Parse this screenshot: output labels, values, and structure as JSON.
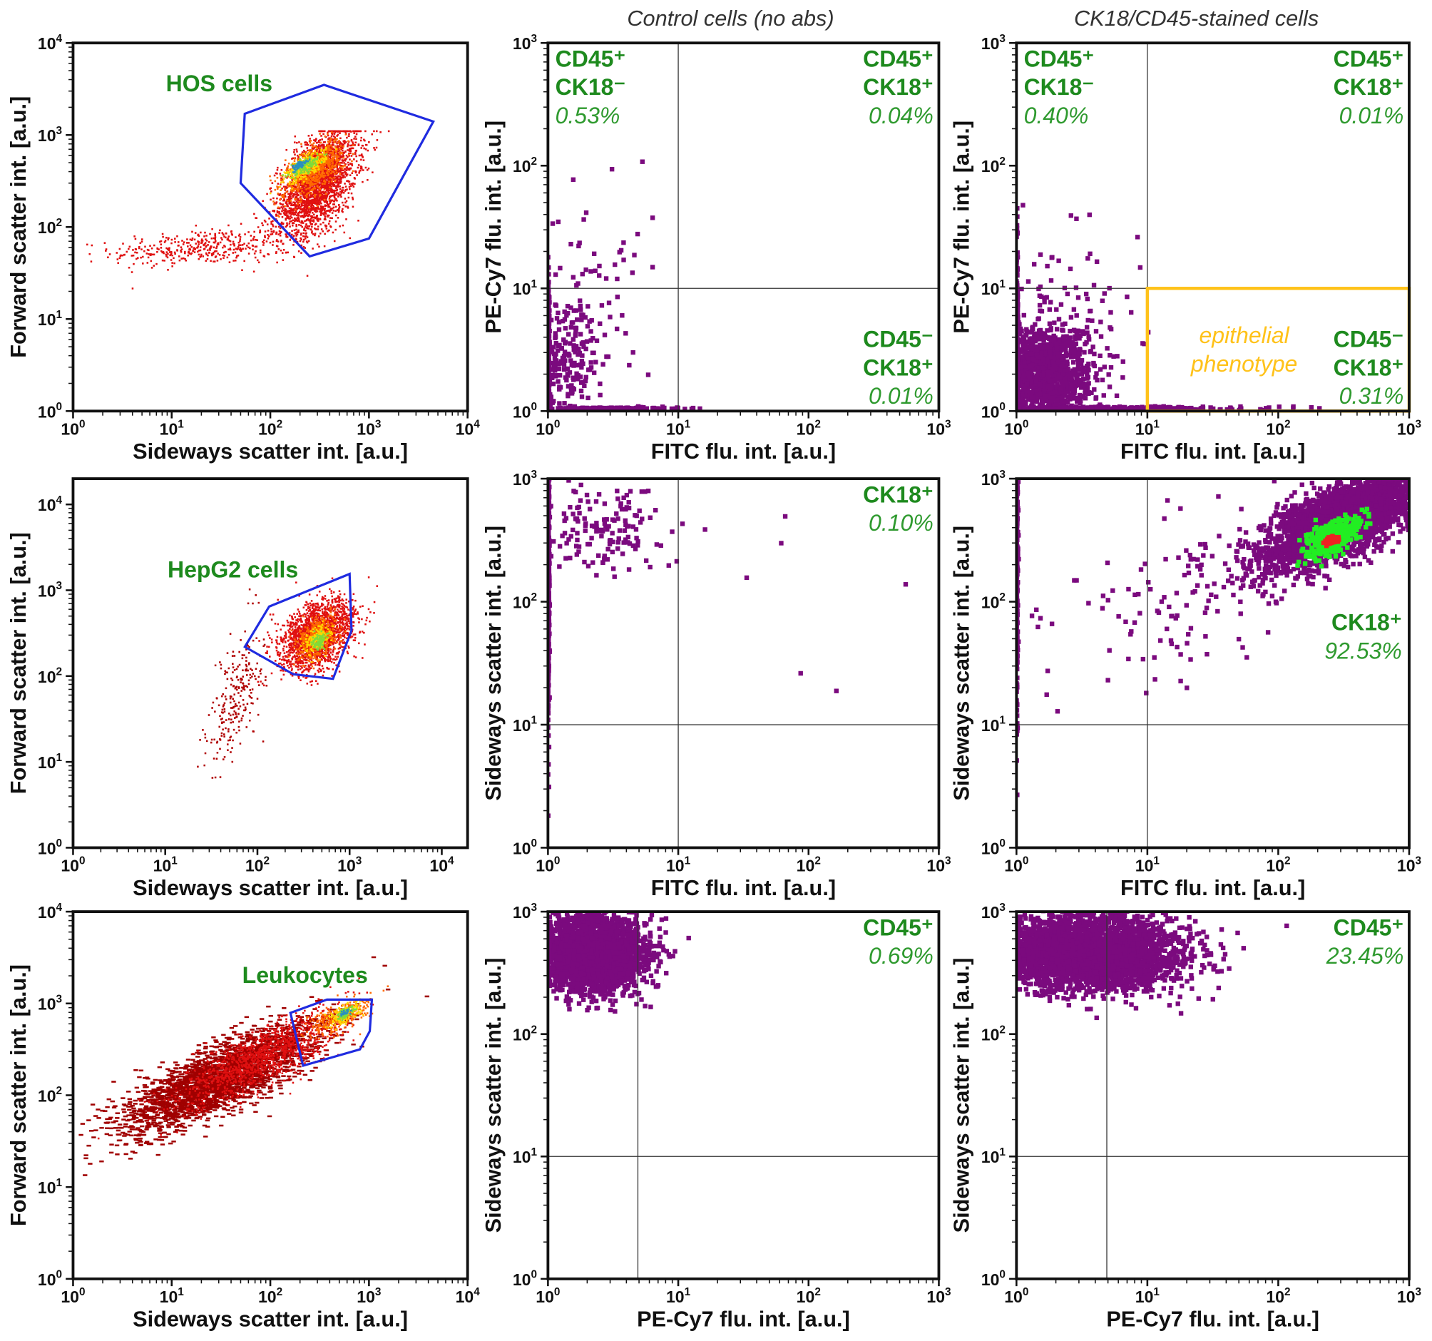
{
  "column_titles": [
    "",
    "Control cells (no abs)",
    "CK18/CD45-stained cells"
  ],
  "colors": {
    "purple": "#7b0a7e",
    "gate_blue": "#1f2be0",
    "gate_orange": "#ffc21a",
    "label_green": "#1e8a1e",
    "quadrant_line": "#333333"
  },
  "chart_data": [
    {
      "type": "scatter",
      "title": "",
      "xlabel": "Sideways scatter int. [a.u.]",
      "ylabel": "Forward scatter int. [a.u.]",
      "xscale": "log",
      "yscale": "log",
      "xlim_exp": [
        0,
        4
      ],
      "ylim_exp": [
        0,
        4
      ],
      "gate_label": "HOS cells",
      "gate": [
        [
          55,
          1700
        ],
        [
          350,
          3500
        ],
        [
          4500,
          1400
        ],
        [
          1000,
          75
        ],
        [
          250,
          48
        ],
        [
          50,
          300
        ]
      ],
      "clusters": [
        {
          "c": [
            20,
            60
          ],
          "s": [
            0.45,
            0.1
          ],
          "rho": 0.3,
          "n": 400,
          "color": "#e01010",
          "marker": "dot"
        },
        {
          "c": [
            300,
            300
          ],
          "s": [
            0.2,
            0.28
          ],
          "rho": 0.5,
          "n": 2500,
          "color": "#e01010",
          "marker": "dot",
          "ymax": 1100
        },
        {
          "c": [
            280,
            420
          ],
          "s": [
            0.15,
            0.15
          ],
          "rho": 0.6,
          "n": 700,
          "color": "#ff6a00",
          "marker": "dot"
        },
        {
          "c": [
            230,
            450
          ],
          "s": [
            0.1,
            0.08
          ],
          "rho": 0.7,
          "n": 300,
          "color": "#ffd700",
          "marker": "dot"
        },
        {
          "c": [
            220,
            460
          ],
          "s": [
            0.07,
            0.05
          ],
          "rho": 0.7,
          "n": 150,
          "color": "#7fdc3a",
          "marker": "dot"
        },
        {
          "c": [
            200,
            470
          ],
          "s": [
            0.04,
            0.03
          ],
          "rho": 0.7,
          "n": 60,
          "color": "#2a8fbf",
          "marker": "dot"
        }
      ]
    },
    {
      "type": "scatter",
      "xlabel": "FITC flu. int. [a.u.]",
      "ylabel": "PE-Cy7 flu. int. [a.u.]",
      "xscale": "log",
      "yscale": "log",
      "xlim_exp": [
        0,
        3
      ],
      "ylim_exp": [
        0,
        3
      ],
      "quadrant": [
        10,
        10
      ],
      "annotations": [
        {
          "position": "top-left",
          "lines": [
            "CD45⁺",
            "CK18⁻"
          ],
          "pct": "0.53%"
        },
        {
          "position": "top-right",
          "lines": [
            "CD45⁺",
            "CK18⁺"
          ],
          "pct": "0.04%"
        },
        {
          "position": "bottom-right",
          "lines": [
            "CD45⁻",
            "CK18⁺"
          ],
          "pct": "0.01%"
        }
      ],
      "clusters": [
        {
          "c": [
            1.3,
            2.5
          ],
          "s": [
            0.15,
            0.25
          ],
          "rho": 0,
          "n": 250,
          "color": "#7b0a7e",
          "marker": "big"
        },
        {
          "c": [
            1,
            3
          ],
          "s": [
            0.005,
            0.3
          ],
          "rho": 0,
          "n": 200,
          "color": "#7b0a7e",
          "marker": "big"
        },
        {
          "c": [
            3,
            1.05
          ],
          "s": [
            0.3,
            0.005
          ],
          "rho": 0,
          "n": 150,
          "color": "#7b0a7e",
          "marker": "big"
        },
        {
          "c": [
            2,
            10
          ],
          "s": [
            0.25,
            0.4
          ],
          "rho": 0,
          "n": 60,
          "color": "#7b0a7e",
          "marker": "big"
        }
      ]
    },
    {
      "type": "scatter",
      "xlabel": "FITC flu. int. [a.u.]",
      "ylabel": "PE-Cy7 flu. int. [a.u.]",
      "xscale": "log",
      "yscale": "log",
      "xlim_exp": [
        0,
        3
      ],
      "ylim_exp": [
        0,
        3
      ],
      "quadrant": [
        10,
        10
      ],
      "gate_rect": [
        [
          10,
          1
        ],
        [
          1000,
          10
        ]
      ],
      "gate_rect_label": [
        "epithelial",
        "phenotype"
      ],
      "annotations": [
        {
          "position": "top-left",
          "lines": [
            "CD45⁺",
            "CK18⁻"
          ],
          "pct": "0.40%"
        },
        {
          "position": "top-right",
          "lines": [
            "CD45⁺",
            "CK18⁺"
          ],
          "pct": "0.01%"
        },
        {
          "position": "bottom-right",
          "lines": [
            "CD45⁻",
            "CK18⁺"
          ],
          "pct": "0.31%"
        }
      ],
      "clusters": [
        {
          "c": [
            1.5,
            2
          ],
          "s": [
            0.2,
            0.2
          ],
          "rho": 0,
          "n": 1500,
          "color": "#7b0a7e",
          "marker": "big"
        },
        {
          "c": [
            1,
            3
          ],
          "s": [
            0.005,
            0.35
          ],
          "rho": 0,
          "n": 400,
          "color": "#7b0a7e",
          "marker": "big"
        },
        {
          "c": [
            5,
            1.05
          ],
          "s": [
            0.5,
            0.008
          ],
          "rho": 0,
          "n": 300,
          "color": "#7b0a7e",
          "marker": "big"
        },
        {
          "c": [
            2.5,
            8
          ],
          "s": [
            0.3,
            0.35
          ],
          "rho": 0,
          "n": 80,
          "color": "#7b0a7e",
          "marker": "big"
        }
      ]
    },
    {
      "type": "scatter",
      "xlabel": "Sideways scatter int. [a.u.]",
      "ylabel": "Forward scatter int. [a.u.]",
      "xscale": "log",
      "yscale": "log",
      "xlim_exp": [
        0,
        4.28
      ],
      "ylim_exp": [
        0,
        4.3
      ],
      "gate_label": "HepG2 cells",
      "gate": [
        [
          134,
          645
        ],
        [
          1000,
          1550
        ],
        [
          1050,
          340
        ],
        [
          660,
          93
        ],
        [
          245,
          105
        ],
        [
          73,
          219
        ]
      ],
      "clusters": [
        {
          "c": [
            60,
            60
          ],
          "s": [
            0.15,
            0.4
          ],
          "rho": 0.6,
          "n": 250,
          "color": "#b00000",
          "marker": "dot"
        },
        {
          "c": [
            450,
            300
          ],
          "s": [
            0.2,
            0.2
          ],
          "rho": 0.4,
          "n": 2000,
          "color": "#e01010",
          "marker": "dot"
        },
        {
          "c": [
            450,
            280
          ],
          "s": [
            0.1,
            0.12
          ],
          "rho": 0.4,
          "n": 500,
          "color": "#ff6a00",
          "marker": "dot"
        },
        {
          "c": [
            450,
            270
          ],
          "s": [
            0.06,
            0.07
          ],
          "rho": 0.4,
          "n": 200,
          "color": "#ffd700",
          "marker": "dot"
        },
        {
          "c": [
            470,
            260
          ],
          "s": [
            0.04,
            0.05
          ],
          "rho": 0.4,
          "n": 80,
          "color": "#7fdc3a",
          "marker": "dot"
        }
      ]
    },
    {
      "type": "scatter",
      "xlabel": "FITC flu. int. [a.u.]",
      "ylabel": "Sideways scatter int. [a.u.]",
      "xscale": "log",
      "yscale": "log",
      "xlim_exp": [
        0,
        3
      ],
      "ylim_exp": [
        0,
        3
      ],
      "quadrant": [
        10,
        10
      ],
      "annotations": [
        {
          "position": "top-right",
          "lines": [
            "CK18⁺"
          ],
          "pct": "0.10%"
        }
      ],
      "clusters": [
        {
          "c": [
            1,
            200
          ],
          "s": [
            0.005,
            0.6
          ],
          "rho": 0,
          "n": 400,
          "color": "#7b0a7e",
          "marker": "big"
        },
        {
          "c": [
            2.5,
            400
          ],
          "s": [
            0.25,
            0.2
          ],
          "rho": 0,
          "n": 150,
          "color": "#7b0a7e",
          "marker": "big"
        },
        {
          "c": [
            30,
            200
          ],
          "s": [
            0.5,
            0.5
          ],
          "rho": 0,
          "n": 8,
          "color": "#7b0a7e",
          "marker": "big"
        }
      ]
    },
    {
      "type": "scatter",
      "xlabel": "FITC flu. int. [a.u.]",
      "ylabel": "Sideways scatter int. [a.u.]",
      "xscale": "log",
      "yscale": "log",
      "xlim_exp": [
        0,
        3
      ],
      "ylim_exp": [
        0,
        3
      ],
      "quadrant": [
        10,
        10
      ],
      "annotations": [
        {
          "position": "right-middle",
          "lines": [
            "CK18⁺"
          ],
          "pct": "92.53%"
        }
      ],
      "clusters": [
        {
          "c": [
            1,
            200
          ],
          "s": [
            0.005,
            0.6
          ],
          "rho": 0,
          "n": 300,
          "color": "#7b0a7e",
          "marker": "big"
        },
        {
          "c": [
            20,
            100
          ],
          "s": [
            0.5,
            0.4
          ],
          "rho": 0.5,
          "n": 120,
          "color": "#7b0a7e",
          "marker": "big"
        },
        {
          "c": [
            300,
            450
          ],
          "s": [
            0.3,
            0.2
          ],
          "rho": 0.7,
          "n": 3000,
          "color": "#7b0a7e",
          "marker": "big"
        },
        {
          "c": [
            260,
            330
          ],
          "s": [
            0.1,
            0.08
          ],
          "rho": 0.6,
          "n": 400,
          "color": "#22ee22",
          "marker": "big"
        },
        {
          "c": [
            260,
            320
          ],
          "s": [
            0.03,
            0.02
          ],
          "rho": 0.6,
          "n": 40,
          "color": "#ee2222",
          "marker": "big"
        }
      ]
    },
    {
      "type": "scatter",
      "xlabel": "Sideways scatter int. [a.u.]",
      "ylabel": "Forward scatter int. [a.u.]",
      "xscale": "log",
      "yscale": "log",
      "xlim_exp": [
        0,
        4
      ],
      "ylim_exp": [
        0,
        4
      ],
      "gate_label": "Leukocytes",
      "gate": [
        [
          160,
          790
        ],
        [
          375,
          1100
        ],
        [
          1070,
          1100
        ],
        [
          1020,
          500
        ],
        [
          810,
          316
        ],
        [
          215,
          210
        ]
      ],
      "clusters": [
        {
          "c": [
            30,
            150
          ],
          "s": [
            0.5,
            0.3
          ],
          "rho": 0.8,
          "n": 2500,
          "color": "#a00000",
          "marker": "dash"
        },
        {
          "c": [
            80,
            250
          ],
          "s": [
            0.4,
            0.25
          ],
          "rho": 0.8,
          "n": 1200,
          "color": "#e01010",
          "marker": "dot"
        },
        {
          "c": [
            500,
            700
          ],
          "s": [
            0.15,
            0.1
          ],
          "rho": 0.6,
          "n": 300,
          "color": "#ff6a00",
          "marker": "dot"
        },
        {
          "c": [
            550,
            750
          ],
          "s": [
            0.08,
            0.06
          ],
          "rho": 0.6,
          "n": 150,
          "color": "#ffd700",
          "marker": "dot"
        },
        {
          "c": [
            560,
            770
          ],
          "s": [
            0.05,
            0.04
          ],
          "rho": 0.6,
          "n": 60,
          "color": "#7fdc3a",
          "marker": "dot"
        },
        {
          "c": [
            560,
            780
          ],
          "s": [
            0.03,
            0.02
          ],
          "rho": 0.6,
          "n": 25,
          "color": "#2a8fbf",
          "marker": "dot"
        }
      ]
    },
    {
      "type": "scatter",
      "xlabel": "PE-Cy7 flu. int. [a.u.]",
      "ylabel": "Sideways scatter int. [a.u.]",
      "xscale": "log",
      "yscale": "log",
      "xlim_exp": [
        0,
        3
      ],
      "ylim_exp": [
        0,
        3
      ],
      "quadrant": [
        4.9,
        10
      ],
      "annotations": [
        {
          "position": "top-right",
          "lines": [
            "CD45⁺"
          ],
          "pct": "0.69%"
        }
      ],
      "clusters": [
        {
          "c": [
            2.2,
            450
          ],
          "s": [
            0.2,
            0.15
          ],
          "rho": 0,
          "n": 3000,
          "color": "#7b0a7e",
          "marker": "big"
        }
      ]
    },
    {
      "type": "scatter",
      "xlabel": "PE-Cy7 flu. int. [a.u.]",
      "ylabel": "Sideways scatter int. [a.u.]",
      "xscale": "log",
      "yscale": "log",
      "xlim_exp": [
        0,
        3
      ],
      "ylim_exp": [
        0,
        3
      ],
      "quadrant": [
        4.9,
        10
      ],
      "annotations": [
        {
          "position": "top-right",
          "lines": [
            "CD45⁺"
          ],
          "pct": "23.45%"
        }
      ],
      "clusters": [
        {
          "c": [
            3.5,
            450
          ],
          "s": [
            0.35,
            0.15
          ],
          "rho": 0,
          "n": 3500,
          "color": "#7b0a7e",
          "marker": "big"
        }
      ]
    }
  ]
}
